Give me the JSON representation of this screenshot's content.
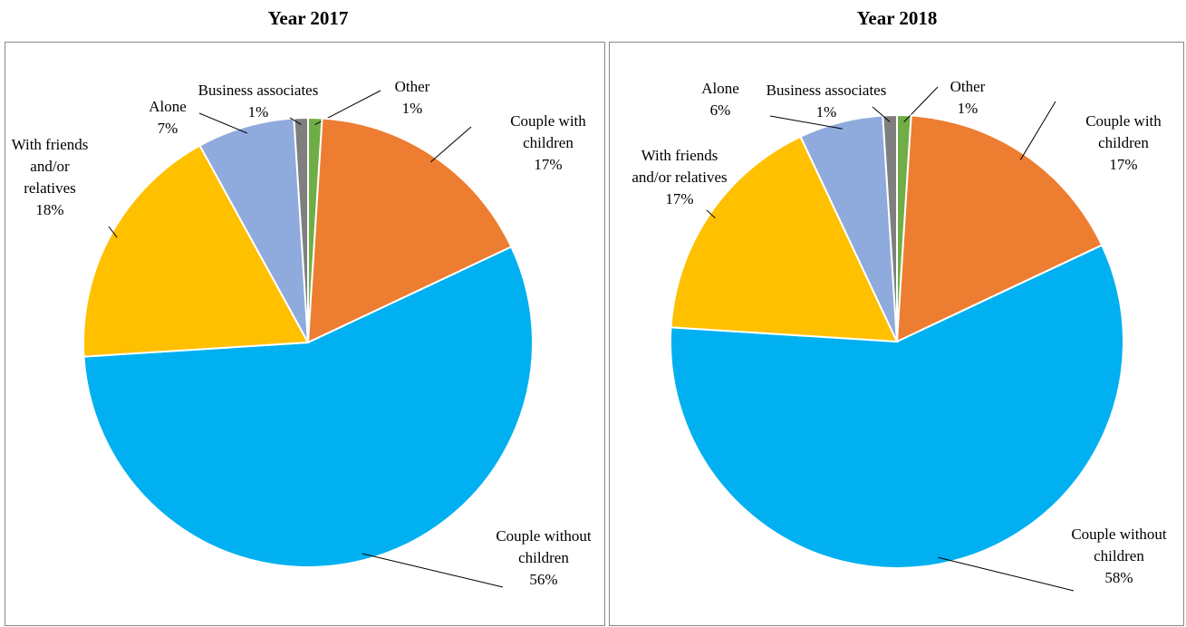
{
  "chart_data": [
    {
      "type": "pie",
      "title": "Year 2017",
      "categories": [
        "Other",
        "Couple with children",
        "Couple without children",
        "With friends and/or relatives",
        "Alone",
        "Business associates"
      ],
      "values": [
        1,
        17,
        56,
        18,
        7,
        1
      ],
      "value_labels": [
        "1%",
        "17%",
        "56%",
        "18%",
        "7%",
        "1%"
      ],
      "colors": [
        "#70ad47",
        "#ed7d31",
        "#00b0f0",
        "#ffc000",
        "#8faadc",
        "#7f7f7f"
      ]
    },
    {
      "type": "pie",
      "title": "Year 2018",
      "categories": [
        "Other",
        "Couple with children",
        "Couple without children",
        "With friends and/or relatives",
        "Alone",
        "Business associates"
      ],
      "values": [
        1,
        17,
        58,
        17,
        6,
        1
      ],
      "value_labels": [
        "1%",
        "17%",
        "58%",
        "17%",
        "6%",
        "1%"
      ],
      "colors": [
        "#70ad47",
        "#ed7d31",
        "#00b0f0",
        "#ffc000",
        "#8faadc",
        "#7f7f7f"
      ]
    }
  ]
}
